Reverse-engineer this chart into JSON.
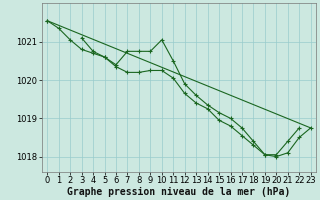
{
  "xlabel": "Graphe pression niveau de la mer (hPa)",
  "hours": [
    0,
    1,
    2,
    3,
    4,
    5,
    6,
    7,
    8,
    9,
    10,
    11,
    12,
    13,
    14,
    15,
    16,
    17,
    18,
    19,
    20,
    21,
    22,
    23
  ],
  "line_upper": [
    1021.55,
    1021.35,
    1021.05,
    1020.8,
    1020.7,
    1020.6,
    1020.4,
    1020.75,
    1020.75,
    1020.75,
    1021.05,
    1020.5,
    1019.9,
    1019.6,
    1019.35,
    1019.15,
    1019.0,
    1018.75,
    1018.4,
    1018.05,
    1018.05,
    1018.4,
    1018.75,
    null
  ],
  "line_lower": [
    1021.55,
    null,
    null,
    1021.1,
    1020.75,
    1020.6,
    1020.35,
    1020.2,
    1020.2,
    1020.25,
    1020.25,
    1020.05,
    1019.65,
    1019.4,
    1019.25,
    1018.95,
    1018.8,
    1018.55,
    1018.3,
    1018.05,
    1018.0,
    1018.1,
    1018.5,
    1018.75
  ],
  "trend": [
    1021.55,
    1018.75
  ],
  "trend_x": [
    0,
    23
  ],
  "bg_color": "#cce8e0",
  "grid_color": "#99cccc",
  "line_color": "#1a6620",
  "ylim": [
    1017.6,
    1022.0
  ],
  "yticks": [
    1018,
    1019,
    1020,
    1021
  ],
  "xticks": [
    0,
    1,
    2,
    3,
    4,
    5,
    6,
    7,
    8,
    9,
    10,
    11,
    12,
    13,
    14,
    15,
    16,
    17,
    18,
    19,
    20,
    21,
    22,
    23
  ],
  "xlabel_fontsize": 7.0,
  "tick_fontsize": 6.0,
  "figsize": [
    3.2,
    2.0
  ],
  "dpi": 100
}
